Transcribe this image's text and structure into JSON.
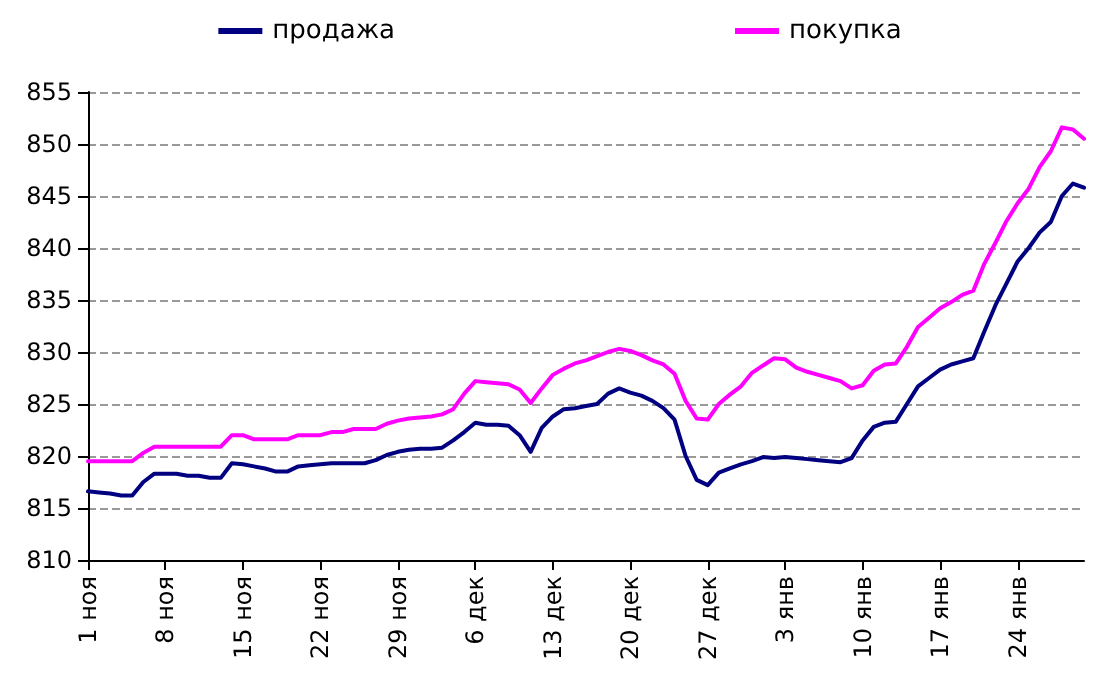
{
  "chart_data": {
    "type": "line",
    "categories": [
      "1 ноя",
      null,
      null,
      null,
      null,
      null,
      null,
      "8 ноя",
      null,
      null,
      null,
      null,
      null,
      null,
      "15 ноя",
      null,
      null,
      null,
      null,
      null,
      null,
      "22 ноя",
      null,
      null,
      null,
      null,
      null,
      null,
      "29 ноя",
      null,
      null,
      null,
      null,
      null,
      null,
      "6 дек",
      null,
      null,
      null,
      null,
      null,
      null,
      "13 дек",
      null,
      null,
      null,
      null,
      null,
      null,
      "20 дек",
      null,
      null,
      null,
      null,
      null,
      null,
      "27 дек",
      null,
      null,
      null,
      null,
      null,
      null,
      "3 янв",
      null,
      null,
      null,
      null,
      null,
      null,
      "10 янв",
      null,
      null,
      null,
      null,
      null,
      null,
      "17 янв",
      null,
      null,
      null,
      null,
      null,
      null,
      "24 янв",
      null,
      null,
      null,
      null,
      null,
      null
    ],
    "series": [
      {
        "name": "продажа",
        "color": "#000080",
        "values": [
          816.6,
          816.5,
          816.4,
          816.2,
          816.2,
          817.5,
          818.3,
          818.3,
          818.3,
          818.1,
          818.1,
          817.9,
          817.9,
          819.3,
          819.2,
          819,
          818.8,
          818.5,
          818.5,
          819,
          819.1,
          819.2,
          819.3,
          819.3,
          819.3,
          819.3,
          819.6,
          820.1,
          820.4,
          820.6,
          820.7,
          820.7,
          820.8,
          821.5,
          822.3,
          823.2,
          823,
          823,
          822.9,
          822,
          820.4,
          822.7,
          823.8,
          824.5,
          824.6,
          824.8,
          825,
          826,
          826.5,
          826.1,
          825.8,
          825.3,
          824.6,
          823.5,
          820,
          817.7,
          817.2,
          818.4,
          818.8,
          819.2,
          819.5,
          819.9,
          819.8,
          819.9,
          819.8,
          819.7,
          819.6,
          819.5,
          819.4,
          819.8,
          821.5,
          822.8,
          823.2,
          823.3,
          825,
          826.7,
          827.5,
          828.3,
          828.8,
          829.1,
          829.4,
          832,
          834.5,
          836.6,
          838.7,
          840,
          841.5,
          842.5,
          845,
          846.2,
          845.8
        ]
      },
      {
        "name": "покупка",
        "color": "#ff00ff",
        "values": [
          819.5,
          819.5,
          819.5,
          819.5,
          819.5,
          820.3,
          820.9,
          820.9,
          820.9,
          820.9,
          820.9,
          820.9,
          820.9,
          822,
          822,
          821.6,
          821.6,
          821.6,
          821.6,
          822,
          822,
          822,
          822.3,
          822.3,
          822.6,
          822.6,
          822.6,
          823.1,
          823.4,
          823.6,
          823.7,
          823.8,
          824,
          824.5,
          826,
          827.2,
          827.1,
          827,
          826.9,
          826.4,
          825.1,
          826.5,
          827.8,
          828.4,
          828.9,
          829.2,
          829.6,
          830,
          830.3,
          830.1,
          829.7,
          829.2,
          828.8,
          827.9,
          825.3,
          823.6,
          823.5,
          825,
          825.9,
          826.7,
          828,
          828.7,
          829.4,
          829.3,
          828.5,
          828.1,
          827.8,
          827.5,
          827.2,
          826.5,
          826.8,
          828.2,
          828.8,
          828.9,
          830.5,
          832.4,
          833.3,
          834.2,
          834.8,
          835.5,
          835.9,
          838.5,
          840.5,
          842.6,
          844.3,
          845.7,
          847.8,
          849.3,
          851.6,
          851.4,
          850.5
        ]
      }
    ],
    "ylim": [
      810,
      855
    ],
    "yticks": [
      810,
      815,
      820,
      825,
      830,
      835,
      840,
      845,
      850,
      855
    ],
    "grid": "y",
    "legend": "top",
    "line_style": "solid",
    "marker": "none"
  }
}
